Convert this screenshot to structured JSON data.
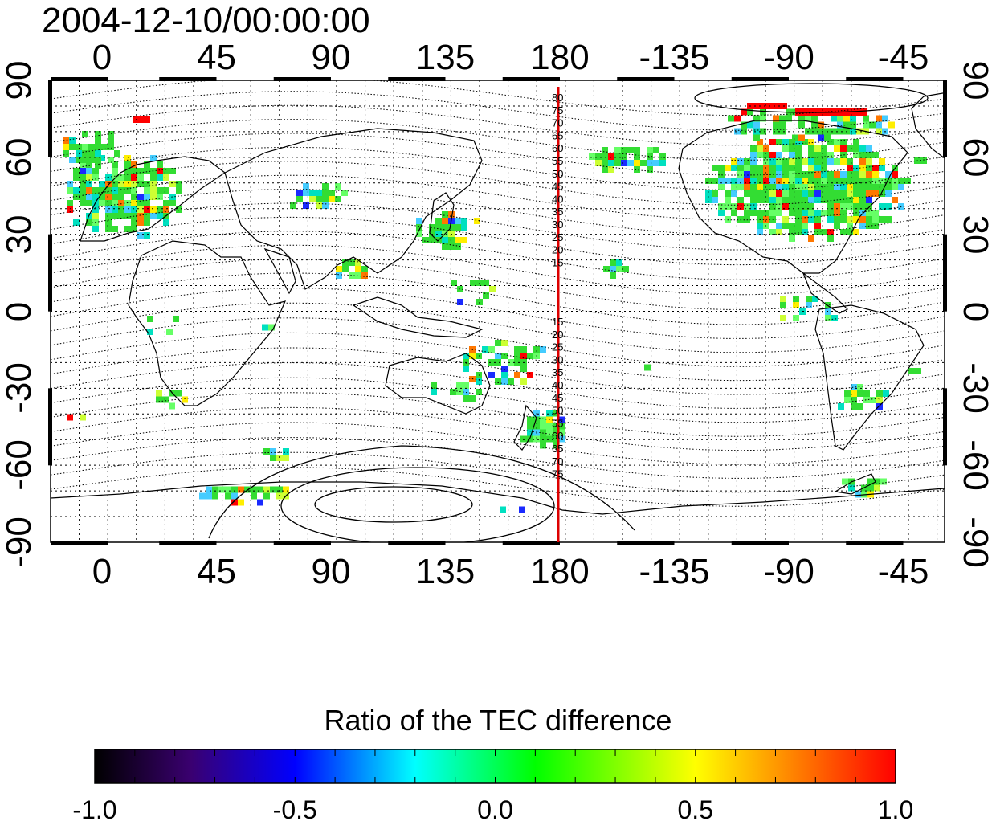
{
  "title": "2004-12-10/00:00:00",
  "longitude_labels": [
    "0",
    "45",
    "90",
    "135",
    "180",
    "-135",
    "-90",
    "-45"
  ],
  "latitude_labels": [
    "90",
    "60",
    "30",
    "0",
    "-30",
    "-60",
    "-90"
  ],
  "meridian_180_color": "#dd0000",
  "contour_labels_north": [
    "80",
    "75",
    "70",
    "65",
    "60",
    "55",
    "50",
    "45",
    "40",
    "35",
    "30",
    "25",
    "20",
    "15"
  ],
  "contour_labels_south": [
    "15",
    "20",
    "25",
    "30",
    "35",
    "40",
    "45",
    "50",
    "55",
    "60",
    "65",
    "70",
    "75"
  ],
  "colorbar": {
    "title": "Ratio of the TEC difference",
    "min": -1.0,
    "max": 1.0,
    "tick_labels": [
      "-1.0",
      "-0.5",
      "0.0",
      "0.5",
      "1.0"
    ],
    "colors": [
      "#000000",
      "#4a0080",
      "#0000ff",
      "#00ffff",
      "#00ff00",
      "#ffff00",
      "#ff0000"
    ]
  }
}
